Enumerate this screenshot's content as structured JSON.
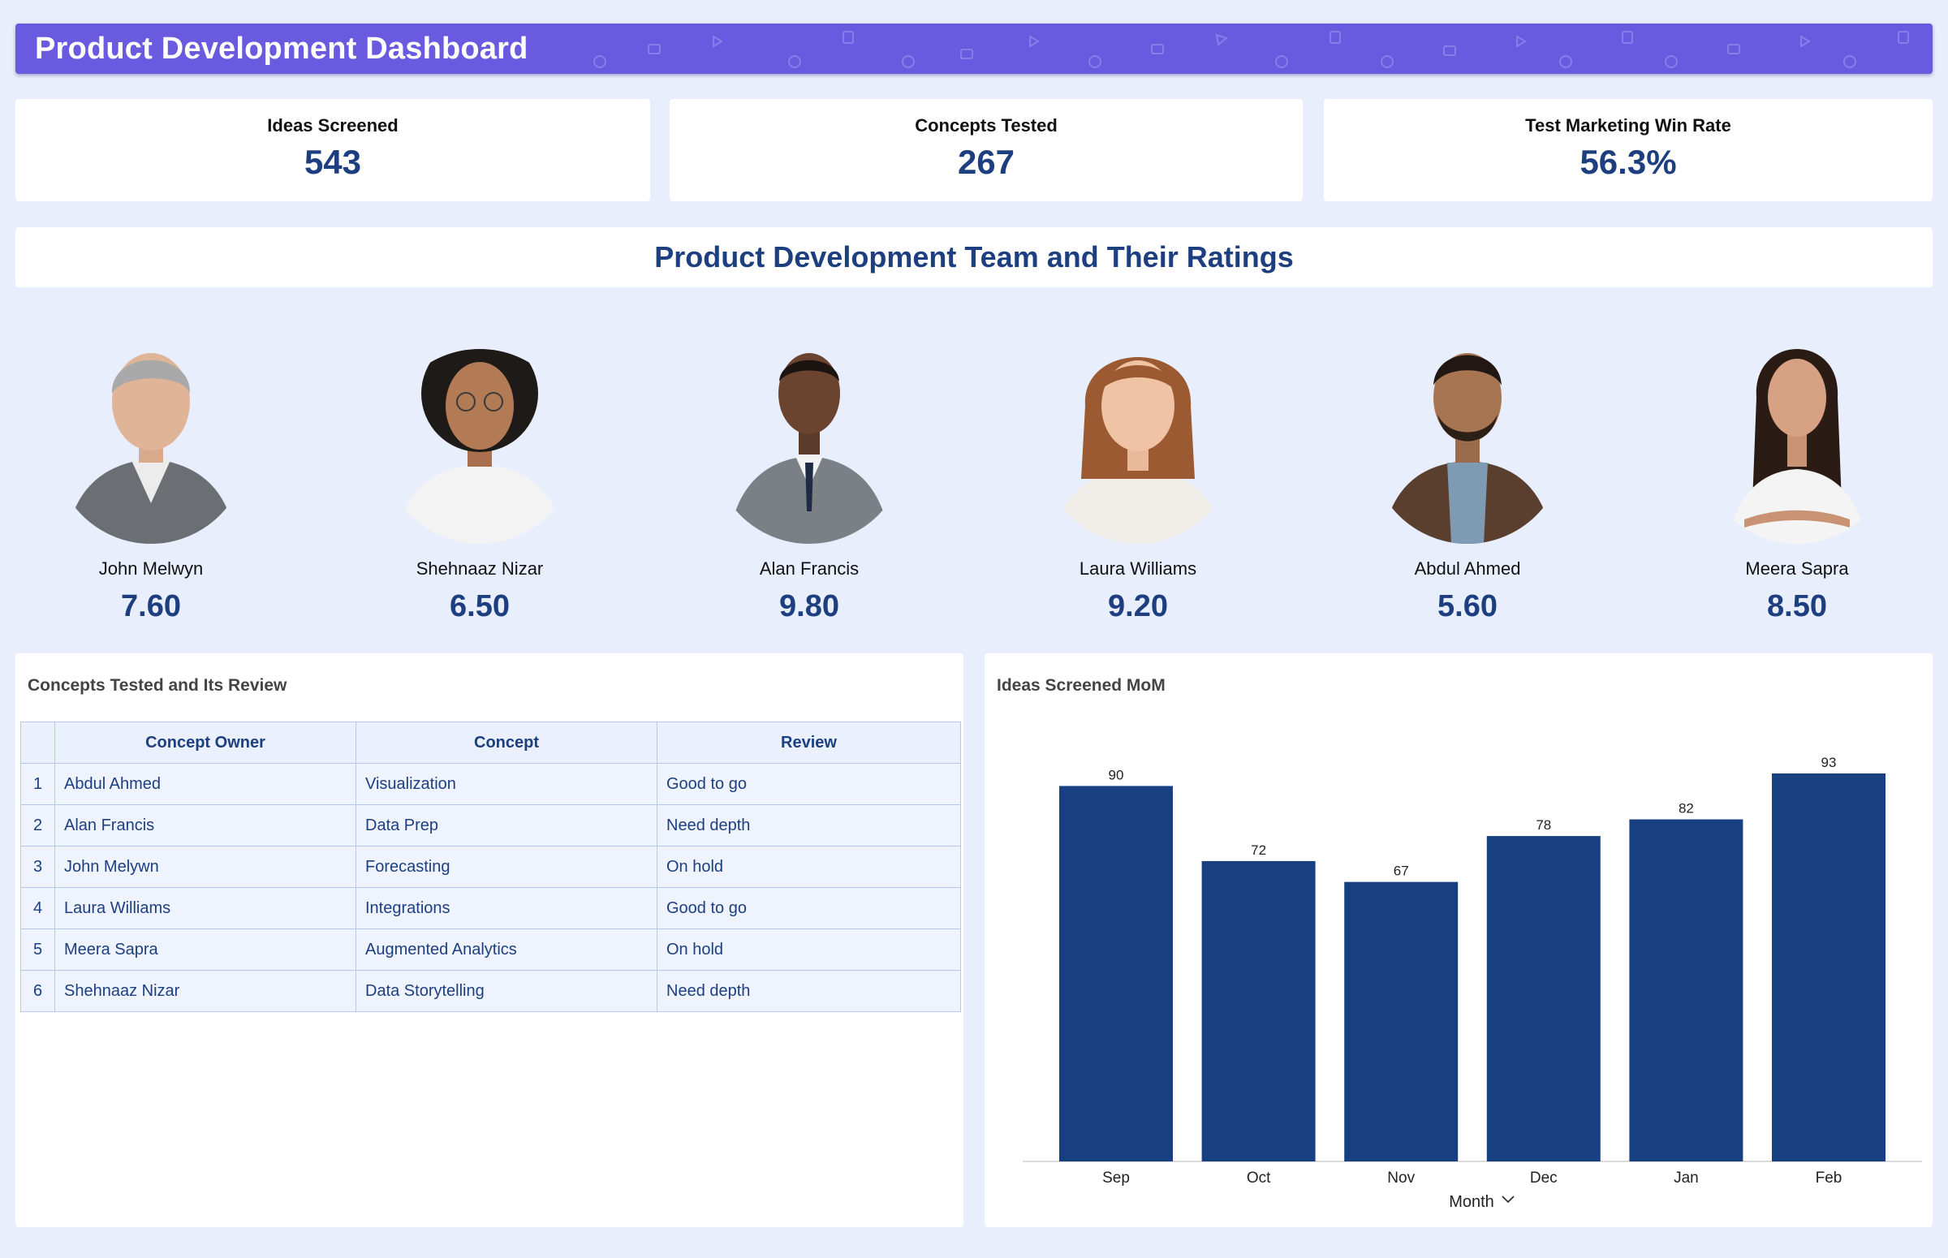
{
  "header": {
    "title": "Product Development Dashboard"
  },
  "kpis": [
    {
      "label": "Ideas Screened",
      "value": "543"
    },
    {
      "label": "Concepts Tested",
      "value": "267"
    },
    {
      "label": "Test Marketing Win Rate",
      "value": "56.3%"
    }
  ],
  "team": {
    "title": "Product Development Team and Their Ratings",
    "members": [
      {
        "name": "John Melwyn",
        "rating": "7.60"
      },
      {
        "name": "Shehnaaz Nizar",
        "rating": "6.50"
      },
      {
        "name": "Alan Francis",
        "rating": "9.80"
      },
      {
        "name": "Laura Williams",
        "rating": "9.20"
      },
      {
        "name": "Abdul Ahmed",
        "rating": "5.60"
      },
      {
        "name": "Meera Sapra",
        "rating": "8.50"
      }
    ]
  },
  "concepts_table": {
    "title": "Concepts Tested and Its Review",
    "columns": [
      "Concept Owner",
      "Concept",
      "Review"
    ],
    "rows": [
      {
        "index": "1",
        "owner": "Abdul Ahmed",
        "concept": "Visualization",
        "review": "Good to go"
      },
      {
        "index": "2",
        "owner": "Alan Francis",
        "concept": "Data Prep",
        "review": "Need depth"
      },
      {
        "index": "3",
        "owner": "John Melywn",
        "concept": "Forecasting",
        "review": "On hold"
      },
      {
        "index": "4",
        "owner": "Laura Williams",
        "concept": "Integrations",
        "review": "Good to go"
      },
      {
        "index": "5",
        "owner": "Meera Sapra",
        "concept": "Augmented Analytics",
        "review": "On hold"
      },
      {
        "index": "6",
        "owner": "Shehnaaz Nizar",
        "concept": "Data Storytelling",
        "review": "Need depth"
      }
    ]
  },
  "chart_panel": {
    "title": "Ideas Screened MoM"
  },
  "chart_data": {
    "type": "bar",
    "title": "Ideas Screened MoM",
    "categories": [
      "Sep",
      "Oct",
      "Nov",
      "Dec",
      "Jan",
      "Feb"
    ],
    "values": [
      90,
      72,
      67,
      78,
      82,
      93
    ],
    "xlabel": "Month",
    "ylabel": "",
    "ylim": [
      0,
      93
    ],
    "grid": false,
    "legend": "none",
    "bar_color": "#183f80"
  },
  "colors": {
    "background": "#e8eefc",
    "header": "#6a5ae0",
    "accent_text": "#1d3f80",
    "bar": "#183f80"
  }
}
